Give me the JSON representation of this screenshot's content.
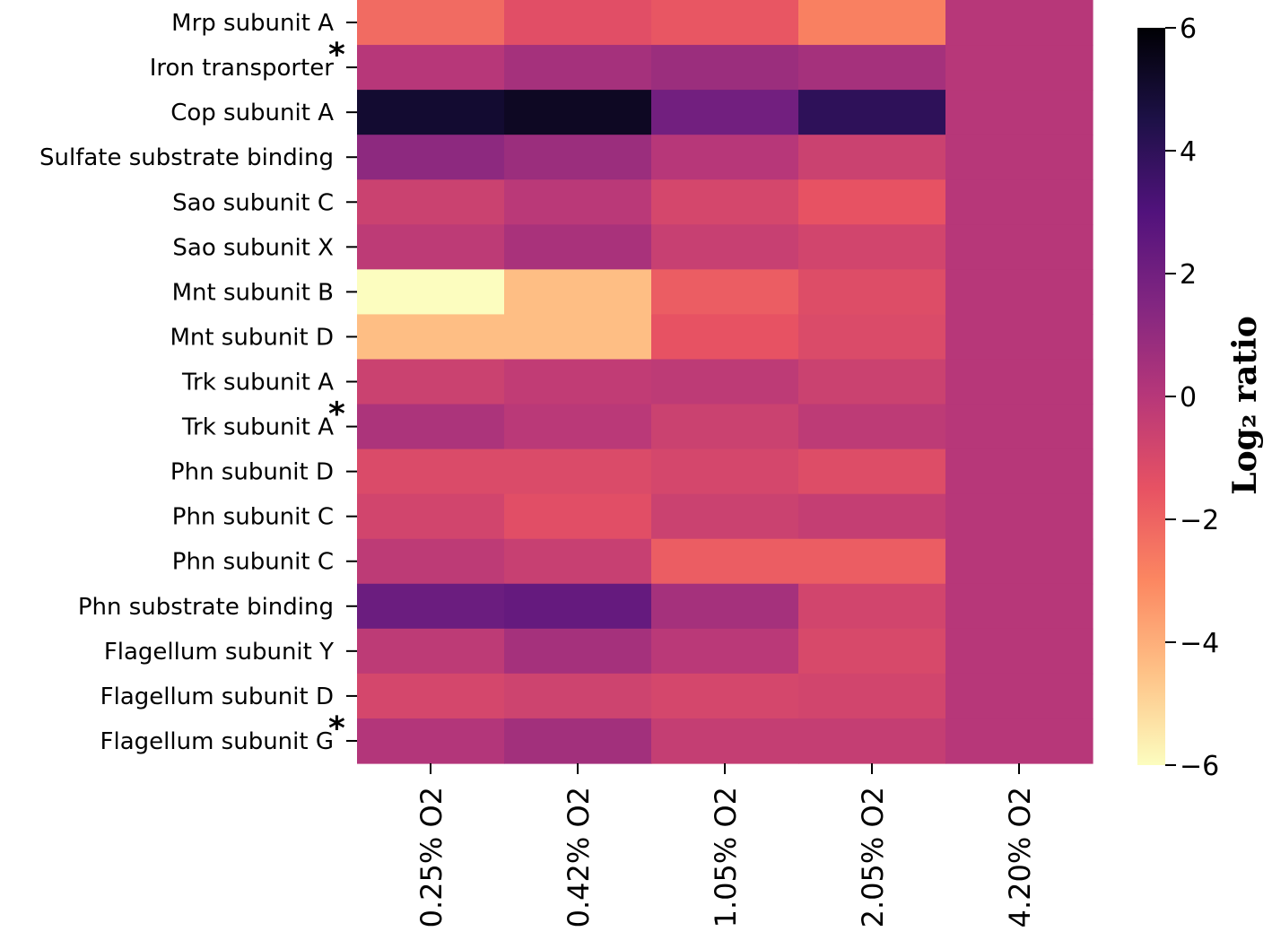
{
  "chart_data": {
    "type": "heatmap",
    "rows": [
      {
        "label": "Mrp subunit A",
        "marker": ""
      },
      {
        "label": "Iron transporter",
        "marker": "*"
      },
      {
        "label": "Cop subunit A",
        "marker": ""
      },
      {
        "label": "Sulfate substrate binding",
        "marker": ""
      },
      {
        "label": "Sao subunit C",
        "marker": ""
      },
      {
        "label": "Sao subunit X",
        "marker": ""
      },
      {
        "label": "Mnt subunit B",
        "marker": ""
      },
      {
        "label": "Mnt subunit D",
        "marker": ""
      },
      {
        "label": "Trk subunit A",
        "marker": ""
      },
      {
        "label": "Trk subunit A",
        "marker": "*"
      },
      {
        "label": "Phn subunit D",
        "marker": ""
      },
      {
        "label": "Phn subunit C",
        "marker": ""
      },
      {
        "label": "Phn subunit C",
        "marker": ""
      },
      {
        "label": "Phn substrate binding",
        "marker": ""
      },
      {
        "label": "Flagellum subunit Y",
        "marker": ""
      },
      {
        "label": "Flagellum subunit D",
        "marker": ""
      },
      {
        "label": "Flagellum subunit G",
        "marker": "*"
      }
    ],
    "columns": [
      "0.25% O2",
      "0.42% O2",
      "1.05% O2",
      "2.05% O2",
      "4.20% O2"
    ],
    "values": [
      [
        -2.2,
        -1.3,
        -1.6,
        -2.8,
        0
      ],
      [
        0.0,
        0.5,
        0.8,
        0.5,
        0
      ],
      [
        5.0,
        5.3,
        2.0,
        4.0,
        0
      ],
      [
        1.2,
        0.8,
        0.0,
        -0.6,
        0
      ],
      [
        -0.6,
        -0.1,
        -0.9,
        -1.5,
        0
      ],
      [
        -0.2,
        0.4,
        -0.5,
        -0.8,
        0
      ],
      [
        -6.0,
        -4.4,
        -1.8,
        -1.2,
        0
      ],
      [
        -4.4,
        -4.4,
        -1.5,
        -1.1,
        0
      ],
      [
        -0.6,
        -0.3,
        -0.2,
        -0.6,
        0
      ],
      [
        0.3,
        -0.1,
        -0.6,
        -0.2,
        0
      ],
      [
        -1.1,
        -1.1,
        -0.9,
        -1.2,
        0
      ],
      [
        -0.8,
        -1.3,
        -0.6,
        -0.4,
        0
      ],
      [
        -0.2,
        -0.5,
        -1.8,
        -1.8,
        0
      ],
      [
        2.2,
        2.4,
        0.5,
        -0.8,
        0
      ],
      [
        -0.2,
        0.5,
        -0.1,
        -1.0,
        0
      ],
      [
        -0.9,
        -0.7,
        -0.9,
        -0.8,
        0
      ],
      [
        0.1,
        0.6,
        -0.4,
        -0.4,
        0
      ]
    ],
    "vmin": -6,
    "vmax": 6,
    "colormap": "magma_r",
    "colorbar": {
      "label": "Log₂ ratio",
      "ticks": [
        6,
        4,
        2,
        0,
        -2,
        -4,
        -6
      ],
      "tick_labels": [
        "6",
        "4",
        "2",
        "0",
        "−2",
        "−4",
        "−6"
      ]
    }
  }
}
